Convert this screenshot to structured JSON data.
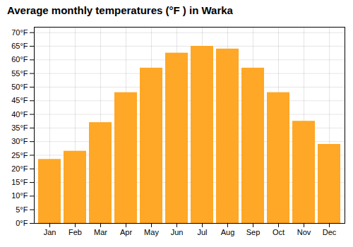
{
  "chart_data": {
    "type": "bar",
    "title": "Average monthly temperatures (°F ) in Warka",
    "categories": [
      "Jan",
      "Feb",
      "Mar",
      "Apr",
      "May",
      "Jun",
      "Jul",
      "Aug",
      "Sep",
      "Oct",
      "Nov",
      "Dec"
    ],
    "values": [
      23.5,
      26.5,
      37.0,
      48.0,
      57.0,
      62.5,
      65.0,
      64.0,
      57.0,
      48.0,
      37.5,
      29.0
    ],
    "color": "#FFA726",
    "ylim": [
      0,
      72
    ],
    "yticks": [
      {
        "value": 0,
        "label": "0°F"
      },
      {
        "value": 5,
        "label": "5°F"
      },
      {
        "value": 10,
        "label": "10°F"
      },
      {
        "value": 15,
        "label": "15°F"
      },
      {
        "value": 20,
        "label": "20°F"
      },
      {
        "value": 25,
        "label": "25°F"
      },
      {
        "value": 30,
        "label": "30°F"
      },
      {
        "value": 35,
        "label": "35°F"
      },
      {
        "value": 40,
        "label": "40°F"
      },
      {
        "value": 45,
        "label": "45°F"
      },
      {
        "value": 50,
        "label": "50°F"
      },
      {
        "value": 55,
        "label": "55°F"
      },
      {
        "value": 60,
        "label": "60°F"
      },
      {
        "value": 65,
        "label": "65°F"
      },
      {
        "value": 70,
        "label": "70°F"
      }
    ],
    "grid": true
  }
}
